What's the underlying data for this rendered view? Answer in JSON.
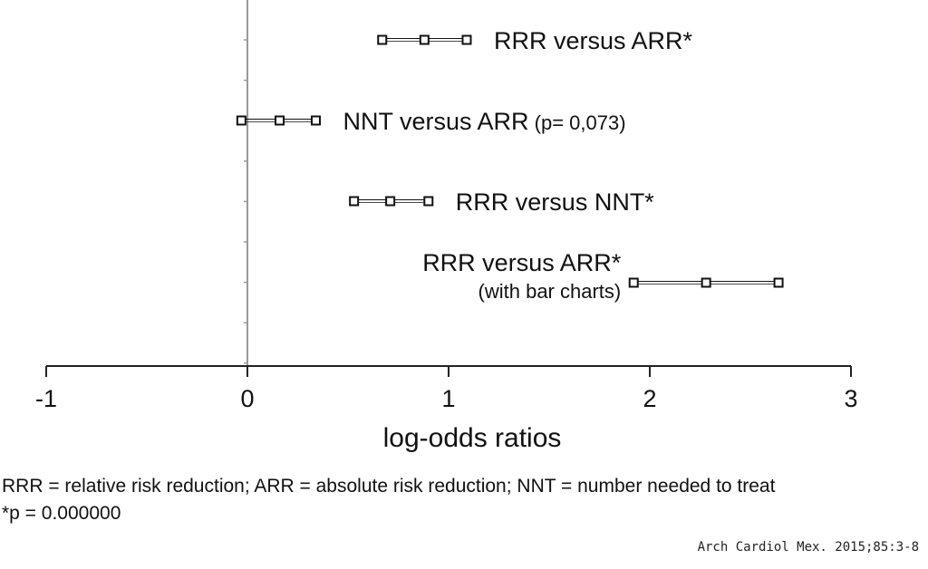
{
  "chart_data": {
    "type": "forest",
    "xlabel": "log-odds ratios",
    "xlim": [
      -1,
      3
    ],
    "xticks": [
      -1,
      0,
      1,
      2,
      3
    ],
    "xtick_labels": [
      "-1",
      "0",
      "1",
      "2",
      "3"
    ],
    "grid": false,
    "rows": [
      {
        "label": "RRR versus ARR*",
        "sublabel": "",
        "note": "",
        "low": 0.67,
        "estimate": 0.88,
        "high": 1.09
      },
      {
        "label": "NNT versus ARR",
        "sublabel": "",
        "note": "(p= 0,073)",
        "low": -0.03,
        "estimate": 0.16,
        "high": 0.34
      },
      {
        "label": "RRR versus NNT*",
        "sublabel": "",
        "note": "",
        "low": 0.53,
        "estimate": 0.71,
        "high": 0.9
      },
      {
        "label": "RRR versus ARR*",
        "sublabel": "(with bar charts)",
        "note": "",
        "low": 1.92,
        "estimate": 2.28,
        "high": 2.64
      }
    ]
  },
  "footnotes": {
    "abbreviations": "RRR = relative risk reduction; ARR = absolute risk reduction; NNT = number needed to treat",
    "significance": "*p = 0.000000"
  },
  "citation": "Arch Cardiol Mex. 2015;85:3-8",
  "colors": {
    "axis": "#222222",
    "reference_line": "#9a9a9a",
    "marker": "#111111",
    "text": "#111111"
  }
}
